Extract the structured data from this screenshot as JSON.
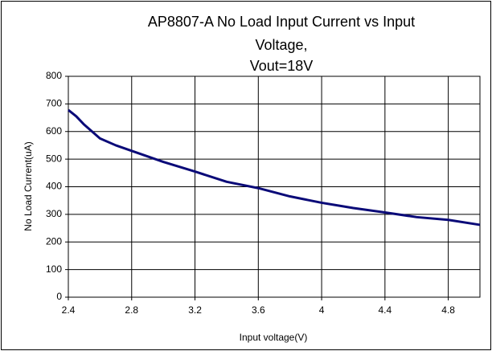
{
  "chart_data": {
    "type": "line",
    "title": [
      "AP8807-A No Load Input Current vs Input",
      "Voltage,",
      "Vout=18V"
    ],
    "x_label": "Input voltage(V)",
    "y_label": "No Load Current(uA)",
    "x": [
      2.4,
      2.45,
      2.5,
      2.6,
      2.7,
      2.8,
      3.0,
      3.2,
      3.4,
      3.6,
      3.8,
      4.0,
      4.2,
      4.4,
      4.6,
      4.8,
      5.0
    ],
    "series": [
      {
        "name": "No Load Current",
        "color": "#0a0a78",
        "values": [
          678,
          655,
          625,
          575,
          550,
          530,
          490,
          455,
          418,
          395,
          365,
          342,
          323,
          307,
          290,
          280,
          262
        ]
      }
    ],
    "xlim": [
      2.4,
      5.0
    ],
    "xticks": [
      2.4,
      2.8,
      3.2,
      3.6,
      4,
      4.4,
      4.8
    ],
    "ylim": [
      0,
      800
    ],
    "yticks": [
      0,
      100,
      200,
      300,
      400,
      500,
      600,
      700,
      800
    ],
    "grid": true
  }
}
